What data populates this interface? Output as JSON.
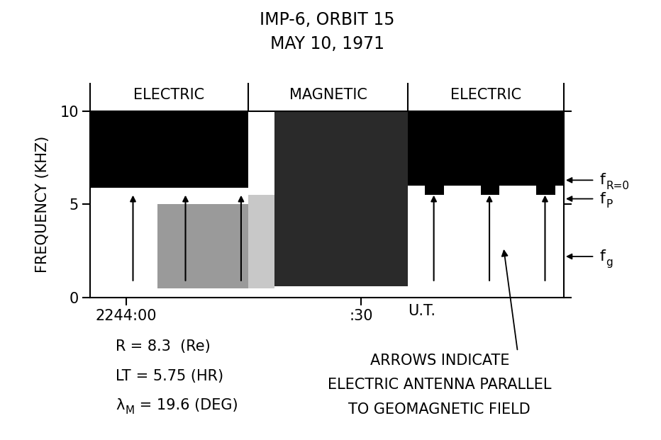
{
  "chart_data": {
    "type": "spectrogram",
    "title": [
      "IMP-6, ORBIT 15",
      "MAY 10, 1971"
    ],
    "ylabel": "FREQUENCY (KHZ)",
    "xlabel": "U.T.",
    "xlim": [
      -4.6,
      55.9
    ],
    "xticks": [
      {
        "value": 0,
        "label": "2244:00"
      },
      {
        "value": 30,
        "label": ":30"
      }
    ],
    "ylim": [
      0,
      10
    ],
    "yticks": [
      0,
      5,
      10
    ],
    "grid": false,
    "segments": [
      {
        "name": "ELECTRIC",
        "start": -4.6,
        "end": 15.6
      },
      {
        "name": "MAGNETIC",
        "start": 15.6,
        "end": 36.0
      },
      {
        "name": "ELECTRIC",
        "start": 36.0,
        "end": 55.9
      }
    ],
    "emissions": [
      {
        "start": -4.6,
        "end": 15.6,
        "fmin": 5.9,
        "fmax": 10.0,
        "color": "#000000"
      },
      {
        "start": 4.0,
        "end": 15.6,
        "fmin": 0.5,
        "fmax": 5.0,
        "color": "#9a9a9a"
      },
      {
        "start": 15.6,
        "end": 19.0,
        "fmin": 0.5,
        "fmax": 5.5,
        "color": "#c8c8c8"
      },
      {
        "start": 19.0,
        "end": 36.0,
        "fmin": 0.6,
        "fmax": 10.0,
        "color": "#2a2a2a"
      },
      {
        "start": 36.0,
        "end": 55.9,
        "fmin": 6.0,
        "fmax": 10.0,
        "color": "#000000"
      },
      {
        "start": 38.2,
        "end": 40.6,
        "fmin": 5.5,
        "fmax": 6.0,
        "color": "#000000"
      },
      {
        "start": 45.3,
        "end": 47.7,
        "fmin": 5.5,
        "fmax": 6.0,
        "color": "#000000"
      },
      {
        "start": 52.4,
        "end": 54.8,
        "fmin": 5.5,
        "fmax": 6.0,
        "color": "#000000"
      }
    ],
    "arrows": {
      "times": [
        0.9,
        7.6,
        14.7,
        39.3,
        46.4,
        53.5
      ],
      "fmin": 0.8,
      "fmax": 5.6,
      "color": "#000000"
    },
    "annotation": {
      "text": "ARROWS INDICATE\nELECTRIC ANTENNA PARALLEL\nTO GEOMAGNETIC FIELD",
      "x": 48.2,
      "y": 2.7
    },
    "frequency_markers": [
      {
        "symbol": "f",
        "subscript": "R=0",
        "value": 6.3
      },
      {
        "symbol": "f",
        "subscript": "P",
        "value": 5.3
      },
      {
        "symbol": "f",
        "subscript": "g",
        "value": 2.2
      }
    ],
    "orbit_info": [
      {
        "symbol": "R",
        "subscript": null,
        "text": " = 8.3  (Re)"
      },
      {
        "symbol": "LT",
        "subscript": null,
        "text": " = 5.75 (HR)"
      },
      {
        "symbol": "λ",
        "subscript": "M",
        "text": " = 19.6 (DEG)"
      }
    ]
  }
}
